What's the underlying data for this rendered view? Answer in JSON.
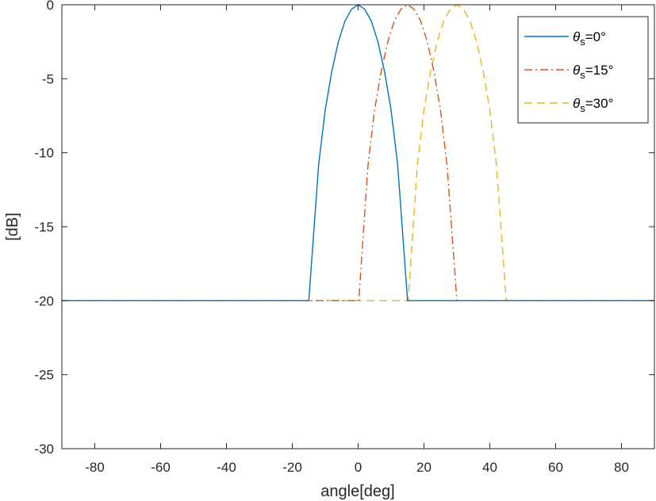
{
  "chart_data": {
    "type": "line",
    "title": "",
    "xlabel": "angle[deg]",
    "ylabel": "[dB]",
    "xlim": [
      -90,
      90
    ],
    "ylim": [
      -30,
      0
    ],
    "xticks": [
      -80,
      -60,
      -40,
      -20,
      0,
      20,
      40,
      60,
      80
    ],
    "yticks": [
      0,
      -5,
      -10,
      -15,
      -20,
      -25,
      -30
    ],
    "xtick_labels": [
      "-80",
      "-60",
      "-40",
      "-20",
      "0",
      "20",
      "40",
      "60",
      "80"
    ],
    "ytick_labels": [
      "0",
      "-5",
      "-10",
      "-15",
      "-20",
      "-25",
      "-30"
    ],
    "grid": false,
    "legend": {
      "position": "top-right"
    },
    "series": [
      {
        "name_parts": {
          "symbol": "θ",
          "sub": "s",
          "rest": "=0°"
        },
        "color": "#0072BD",
        "dash": "solid",
        "x": [
          -90,
          -15.2,
          -15,
          -12,
          -10,
          -8,
          -6,
          -4,
          -2,
          0,
          2,
          4,
          6,
          8,
          10,
          12,
          15,
          15.2,
          90
        ],
        "y": [
          -20,
          -20,
          -20,
          -10.8,
          -7.1,
          -4.5,
          -2.5,
          -1.1,
          -0.3,
          0,
          -0.3,
          -1.1,
          -2.5,
          -4.5,
          -7.1,
          -10.8,
          -20,
          -20,
          -20
        ]
      },
      {
        "name_parts": {
          "symbol": "θ",
          "sub": "s",
          "rest": "=15°"
        },
        "color": "#D95319",
        "dash": "dashdot",
        "x": [
          -90,
          0,
          0.2,
          3,
          5,
          7,
          9,
          11,
          13,
          15,
          17,
          19,
          21,
          23,
          25,
          27,
          30,
          30.2,
          90
        ],
        "y": [
          -20,
          -20,
          -20,
          -10.8,
          -7.1,
          -4.5,
          -2.5,
          -1.1,
          -0.3,
          0,
          -0.3,
          -1.1,
          -2.5,
          -4.5,
          -7.1,
          -10.8,
          -20,
          -20,
          -20
        ]
      },
      {
        "name_parts": {
          "symbol": "θ",
          "sub": "s",
          "rest": "=30°"
        },
        "color": "#EDB120",
        "dash": "dashed",
        "x": [
          -90,
          15,
          15.2,
          18,
          20,
          22,
          24,
          26,
          28,
          30,
          32,
          34,
          36,
          38,
          40,
          42,
          45,
          45.2,
          90
        ],
        "y": [
          -20,
          -20,
          -20,
          -10.8,
          -7.1,
          -4.5,
          -2.5,
          -1.1,
          -0.3,
          0,
          -0.3,
          -1.1,
          -2.5,
          -4.5,
          -7.1,
          -10.8,
          -20,
          -20,
          -20
        ]
      }
    ]
  }
}
